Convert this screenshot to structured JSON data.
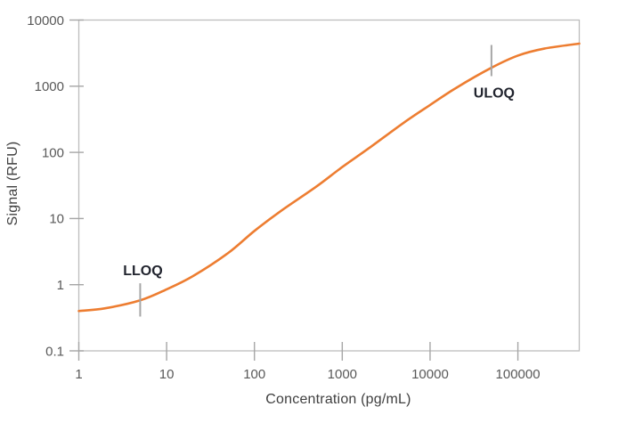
{
  "chart_data": {
    "type": "line",
    "title": "",
    "x_axis": {
      "label": "Concentration (pg/mL)",
      "scale": "log",
      "min": 1,
      "max": 500000,
      "tick_values": [
        1,
        10,
        100,
        1000,
        10000,
        100000
      ],
      "tick_labels": [
        "1",
        "10",
        "100",
        "1000",
        "10000",
        "100000"
      ]
    },
    "y_axis": {
      "label": "Signal (RFU)",
      "scale": "log",
      "min": 0.1,
      "max": 10000,
      "tick_values": [
        0.1,
        1,
        10,
        100,
        1000,
        10000
      ],
      "tick_labels": [
        "0.1",
        "1",
        "10",
        "100",
        "1000",
        "10000"
      ]
    },
    "grid": false,
    "legend": false,
    "series": [
      {
        "name": "calibration-curve",
        "color": "#ED7D31",
        "points": [
          [
            1,
            0.4
          ],
          [
            2,
            0.44
          ],
          [
            5,
            0.58
          ],
          [
            10,
            0.85
          ],
          [
            20,
            1.35
          ],
          [
            50,
            3.0
          ],
          [
            100,
            6.5
          ],
          [
            200,
            13
          ],
          [
            500,
            30
          ],
          [
            1000,
            60
          ],
          [
            2000,
            115
          ],
          [
            5000,
            280
          ],
          [
            10000,
            520
          ],
          [
            20000,
            950
          ],
          [
            50000,
            1900
          ],
          [
            100000,
            2900
          ],
          [
            200000,
            3700
          ],
          [
            500000,
            4400
          ]
        ]
      }
    ],
    "annotations": [
      {
        "id": "lloq",
        "label": "LLOQ",
        "x": 5,
        "marker_signal_range": [
          0.33,
          1.05
        ],
        "label_signal": 1.62
      },
      {
        "id": "uloq",
        "label": "ULOQ",
        "x": 50000,
        "marker_signal_range": [
          1420,
          4200
        ],
        "label_signal": 790
      }
    ],
    "colors": {
      "curve": "#ED7D31",
      "frame": "#BDBDBD",
      "tick": "#A6A6A6",
      "tick_label": "#595959",
      "axis_title": "#404040",
      "marker": "#A6A6A6",
      "annotation_text": "#21242E"
    }
  }
}
